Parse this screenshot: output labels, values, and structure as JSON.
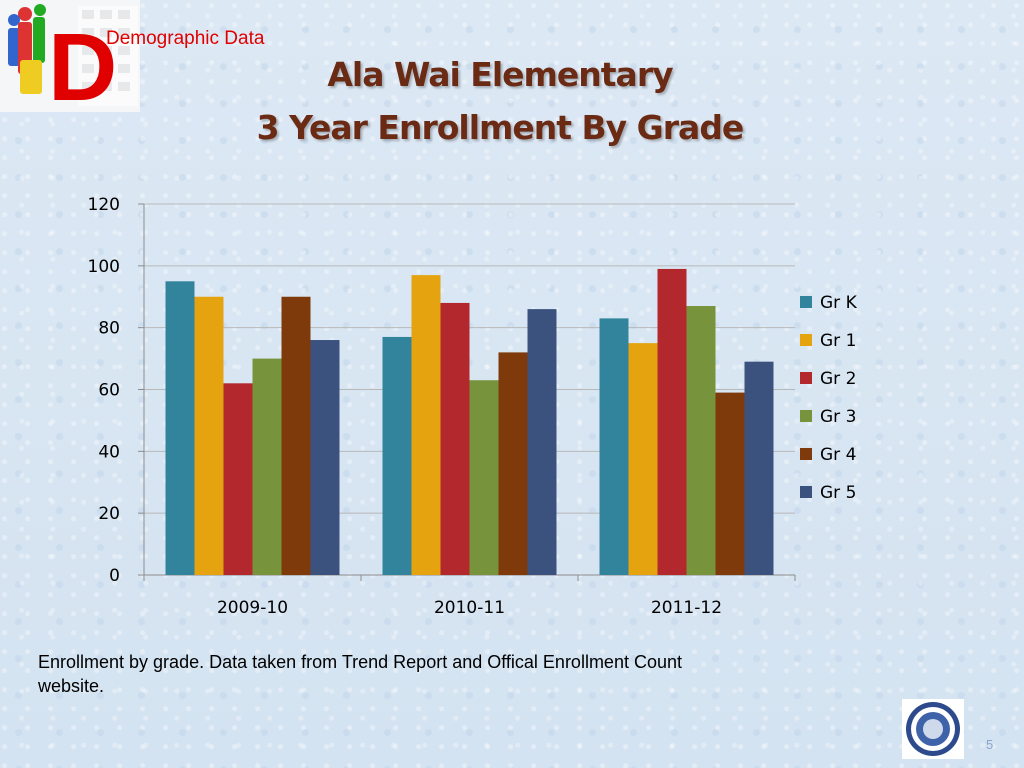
{
  "header": {
    "badge_letter": "D",
    "badge_label": "Demographic Data",
    "title_line1": "Ala Wai Elementary",
    "title_line2": "3 Year Enrollment By Grade"
  },
  "colors": {
    "title": "#6b2a13",
    "badge": "#e00000"
  },
  "chart_data": {
    "type": "bar",
    "categories": [
      "2009-10",
      "2010-11",
      "2011-12"
    ],
    "series": [
      {
        "name": "Gr K",
        "color": "#31849b",
        "values": [
          95,
          77,
          83
        ]
      },
      {
        "name": "Gr 1",
        "color": "#e5a40f",
        "values": [
          90,
          97,
          75
        ]
      },
      {
        "name": "Gr 2",
        "color": "#b3282c",
        "values": [
          62,
          88,
          99
        ]
      },
      {
        "name": "Gr 3",
        "color": "#77933c",
        "values": [
          70,
          63,
          87
        ]
      },
      {
        "name": "Gr 4",
        "color": "#7f3a0b",
        "values": [
          90,
          72,
          59
        ]
      },
      {
        "name": "Gr 5",
        "color": "#3b527f",
        "values": [
          76,
          86,
          69
        ]
      }
    ],
    "ylim": [
      0,
      120
    ],
    "yticks": [
      0,
      20,
      40,
      60,
      80,
      100,
      120
    ],
    "grid": true,
    "legend_position": "right"
  },
  "footer": {
    "caption": "Enrollment by grade. Data taken from Trend Report and Offical Enrollment Count website.",
    "page_number": "5"
  }
}
